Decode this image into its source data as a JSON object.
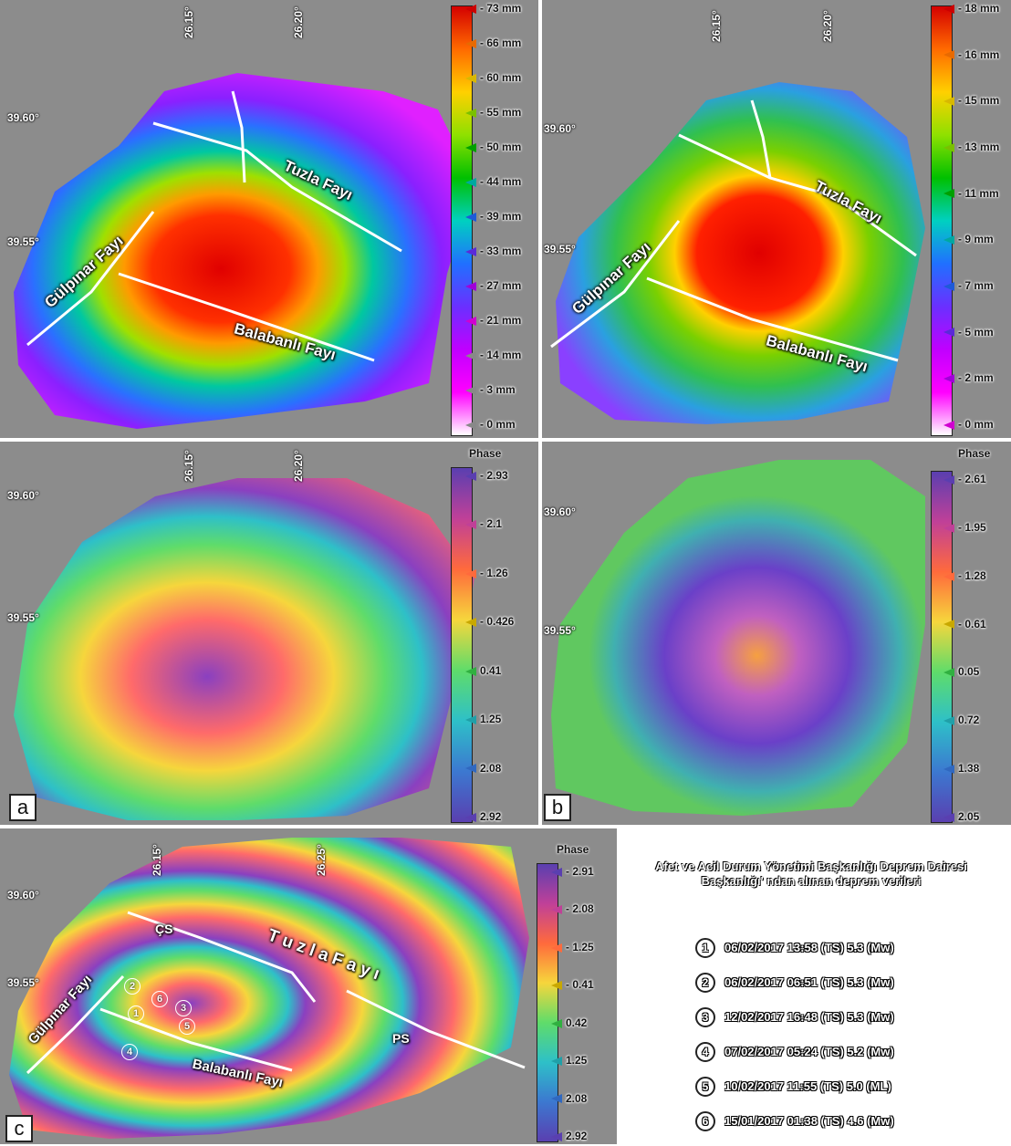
{
  "panels": {
    "a": {
      "letter": "a"
    },
    "b": {
      "letter": "b"
    },
    "c": {
      "letter": "c"
    }
  },
  "ticks": {
    "lon_a": [
      "26.15°",
      "26.20°"
    ],
    "lat_a": [
      "39.60°",
      "39.55°"
    ],
    "lon_b": [
      "26.15°",
      "26.20°"
    ],
    "lat_b": [
      "39.60°",
      "39.55°"
    ],
    "lon_a2": [
      "26.15°",
      "26.20°"
    ],
    "lat_a2": [
      "39.60°",
      "39.55°"
    ],
    "lat_b2": [
      "39.60°",
      "39.55°"
    ],
    "lon_c": [
      "26.15°",
      "26.25°"
    ],
    "lat_c": [
      "39.60°",
      "39.55°"
    ]
  },
  "faults": {
    "tuzla": "Tuzla Fayı",
    "tuzla_spaced": "T u z l a   F a y ı",
    "gulpinar": "Gülpınar Fayı",
    "balabanli": "Balabanlı Fayı",
    "cs": "ÇS",
    "ps": "PS"
  },
  "colorbars": {
    "disp_a": [
      "- 73 mm",
      "- 66 mm",
      "- 60 mm",
      "- 55 mm",
      "- 50 mm",
      "- 44 mm",
      "- 39 mm",
      "- 33 mm",
      "- 27 mm",
      "- 21 mm",
      "- 14 mm",
      "- 3 mm",
      "- 0 mm"
    ],
    "disp_b": [
      "- 18 mm",
      "- 16 mm",
      "- 15 mm",
      "- 13 mm",
      "- 11 mm",
      "- 9 mm",
      "- 7 mm",
      "- 5 mm",
      "- 2 mm",
      "- 0 mm"
    ],
    "phase_title": "Phase",
    "phase_a": [
      "- 2.93",
      "- 2.1",
      "- 1.26",
      "- 0.426",
      "0.41",
      "1.25",
      "2.08",
      "2.92"
    ],
    "phase_b": [
      "- 2.61",
      "- 1.95",
      "- 1.28",
      "- 0.61",
      "0.05",
      "0.72",
      "1.38",
      "2.05"
    ],
    "phase_c": [
      "- 2.91",
      "- 2.08",
      "- 1.25",
      "- 0.41",
      "0.42",
      "1.25",
      "2.08",
      "2.92"
    ]
  },
  "info": {
    "title": "Afet ve Acil Durum Yönetimi Başkanlığı Deprem Dairesi Başkanlığı' ndan alınan deprem verileri",
    "earthquakes": [
      {
        "num": "1",
        "text": "06/02/2017 13:58 (TS) 5.3 (Mw)"
      },
      {
        "num": "2",
        "text": "06/02/2017 06:51 (TS) 5.3 (Mw)"
      },
      {
        "num": "3",
        "text": "12/02/2017 16:48 (TS) 5.3 (Mw)"
      },
      {
        "num": "4",
        "text": "07/02/2017 05:24 (TS) 5.2 (Mw)"
      },
      {
        "num": "5",
        "text": "10/02/2017 11:55 (TS) 5.0 (ML)"
      },
      {
        "num": "6",
        "text": "15/01/2017 01:38 (TS) 4.6 (Mw)"
      }
    ]
  },
  "colors": {
    "background": "#8c8c8c",
    "fault_line": "#ffffff"
  }
}
